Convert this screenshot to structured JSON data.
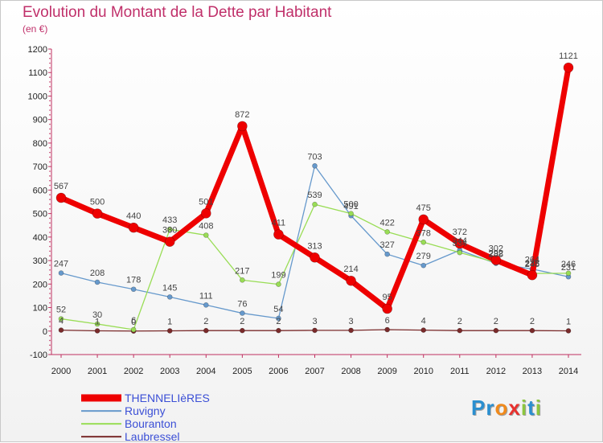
{
  "title": "Evolution du Montant de la Dette par Habitant",
  "unit": "(en €)",
  "logo": {
    "text": "Proxiti",
    "letters": [
      "P",
      "r",
      "o",
      "x",
      "i",
      "t",
      "i"
    ],
    "colors": [
      "#2a8fd0",
      "#2a8fd0",
      "#f08a1c",
      "#e8312e",
      "#8cc63f",
      "#2a8fd0",
      "#8cc63f"
    ]
  },
  "chart_data": {
    "type": "line",
    "categories": [
      "2000",
      "2001",
      "2002",
      "2003",
      "2004",
      "2005",
      "2006",
      "2007",
      "2008",
      "2009",
      "2010",
      "2011",
      "2012",
      "2013",
      "2014"
    ],
    "ylim": [
      -100,
      1200
    ],
    "yticks": [
      -100,
      0,
      100,
      200,
      300,
      400,
      500,
      600,
      700,
      800,
      900,
      1000,
      1100,
      1200
    ],
    "grid": false,
    "legend": "bottom-left",
    "series": [
      {
        "name": "Laubressel",
        "color": "#7a2a2a",
        "width": 1.3,
        "marker": 3,
        "values": [
          4,
          1,
          0,
          1,
          2,
          2,
          2,
          3,
          3,
          6,
          4,
          2,
          2,
          2,
          1
        ],
        "labels": [
          "4",
          "1",
          "0",
          "1",
          "2",
          "2",
          "2",
          "3",
          "3",
          "6",
          "4",
          "2",
          "2",
          "2",
          "1"
        ]
      },
      {
        "name": "Ruvigny",
        "color": "#6699cc",
        "width": 1.3,
        "marker": 3,
        "values": [
          247,
          208,
          178,
          145,
          111,
          76,
          54,
          703,
          491,
          327,
          279,
          344,
          288,
          264,
          231
        ],
        "labels": [
          "247",
          "208",
          "178",
          "145",
          "111",
          "76",
          "54",
          "703",
          "491",
          "327",
          "279",
          "344",
          "288",
          "264",
          "231"
        ]
      },
      {
        "name": "Bouranton",
        "color": "#99dd55",
        "width": 1.3,
        "marker": 3,
        "values": [
          52,
          30,
          6,
          433,
          408,
          217,
          199,
          539,
          500,
          422,
          378,
          334,
          292,
          245,
          246
        ],
        "labels": [
          "52",
          "30",
          "6",
          "433",
          "408",
          "217",
          "199",
          "539",
          "500",
          "422",
          "378",
          "334",
          "292",
          "245",
          "246"
        ]
      },
      {
        "name": "THENNELIèRES",
        "color": "#ee0000",
        "width": 7,
        "marker": 6,
        "values": [
          567,
          500,
          440,
          380,
          501,
          872,
          411,
          313,
          214,
          95,
          475,
          372,
          302,
          238,
          1121
        ],
        "labels": [
          "567",
          "500",
          "440",
          "380",
          "501",
          "872",
          "411",
          "313",
          "214",
          "95",
          "475",
          "372",
          "302",
          "238",
          "1121"
        ]
      }
    ],
    "legend_order": [
      "THENNELIèRES",
      "Ruvigny",
      "Bouranton",
      "Laubressel"
    ]
  }
}
